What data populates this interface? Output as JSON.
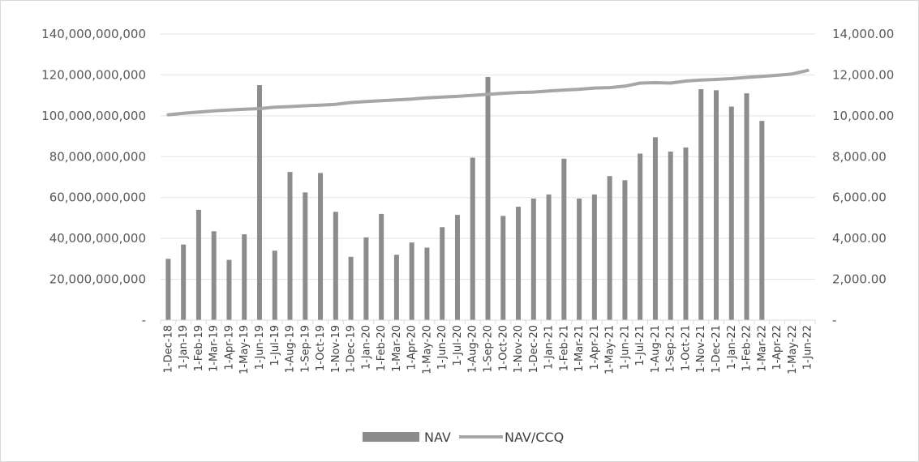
{
  "chart_data": {
    "type": "bar+line",
    "title": "",
    "categories": [
      "1-Dec-18",
      "1-Jan-19",
      "1-Feb-19",
      "1-Mar-19",
      "1-Apr-19",
      "1-May-19",
      "1-Jun-19",
      "1-Jul-19",
      "1-Aug-19",
      "1-Sep-19",
      "1-Oct-19",
      "1-Nov-19",
      "1-Dec-19",
      "1-Jan-20",
      "1-Feb-20",
      "1-Mar-20",
      "1-Apr-20",
      "1-May-20",
      "1-Jun-20",
      "1-Jul-20",
      "1-Aug-20",
      "1-Sep-20",
      "1-Oct-20",
      "1-Nov-20",
      "1-Dec-20",
      "1-Jan-21",
      "1-Feb-21",
      "1-Mar-21",
      "1-Apr-21",
      "1-May-21",
      "1-Jun-21",
      "1-Jul-21",
      "1-Aug-21",
      "1-Sep-21",
      "1-Oct-21",
      "1-Nov-21",
      "1-Dec-21",
      "1-Jan-22",
      "1-Feb-22",
      "1-Mar-22",
      "1-Apr-22",
      "1-May-22",
      "1-Jun-22"
    ],
    "series": [
      {
        "name": "NAV",
        "type": "bar",
        "axis": "left",
        "color": "#8c8c8c",
        "values": [
          30000000000,
          37000000000,
          54000000000,
          43500000000,
          29500000000,
          42000000000,
          115000000000,
          34000000000,
          72500000000,
          62500000000,
          72000000000,
          53000000000,
          31000000000,
          40500000000,
          52000000000,
          32000000000,
          38000000000,
          35500000000,
          45500000000,
          51500000000,
          79500000000,
          119000000000,
          51000000000,
          55500000000,
          59500000000,
          61500000000,
          79000000000,
          59500000000,
          61500000000,
          70500000000,
          68500000000,
          81500000000,
          89500000000,
          82500000000,
          84500000000,
          113000000000,
          112500000000,
          104500000000,
          111000000000,
          97500000000,
          null,
          null,
          null
        ]
      },
      {
        "name": "NAV/CCQ",
        "type": "line",
        "axis": "right",
        "color": "#a6a6a6",
        "values": [
          10050,
          10120,
          10180,
          10240,
          10280,
          10320,
          10350,
          10420,
          10450,
          10490,
          10520,
          10560,
          10650,
          10700,
          10740,
          10780,
          10820,
          10880,
          10920,
          10950,
          11000,
          11050,
          11100,
          11140,
          11160,
          11210,
          11260,
          11300,
          11360,
          11380,
          11450,
          11600,
          11620,
          11600,
          11700,
          11750,
          11780,
          11820,
          11880,
          11930,
          11980,
          12050,
          12220
        ]
      }
    ],
    "y_left": {
      "min": 0,
      "max": 140000000000,
      "tick_labels": [
        "-",
        "20,000,000,000",
        "40,000,000,000",
        "60,000,000,000",
        "80,000,000,000",
        "100,000,000,000",
        "120,000,000,000",
        "140,000,000,000"
      ]
    },
    "y_right": {
      "min": 0,
      "max": 14000,
      "tick_labels": [
        "-",
        "2,000.00",
        "4,000.00",
        "6,000.00",
        "8,000.00",
        "10,000.00",
        "12,000.00",
        "14,000.00"
      ]
    },
    "grid": true,
    "legend_position": "bottom",
    "legend": [
      "NAV",
      "NAV/CCQ"
    ]
  }
}
